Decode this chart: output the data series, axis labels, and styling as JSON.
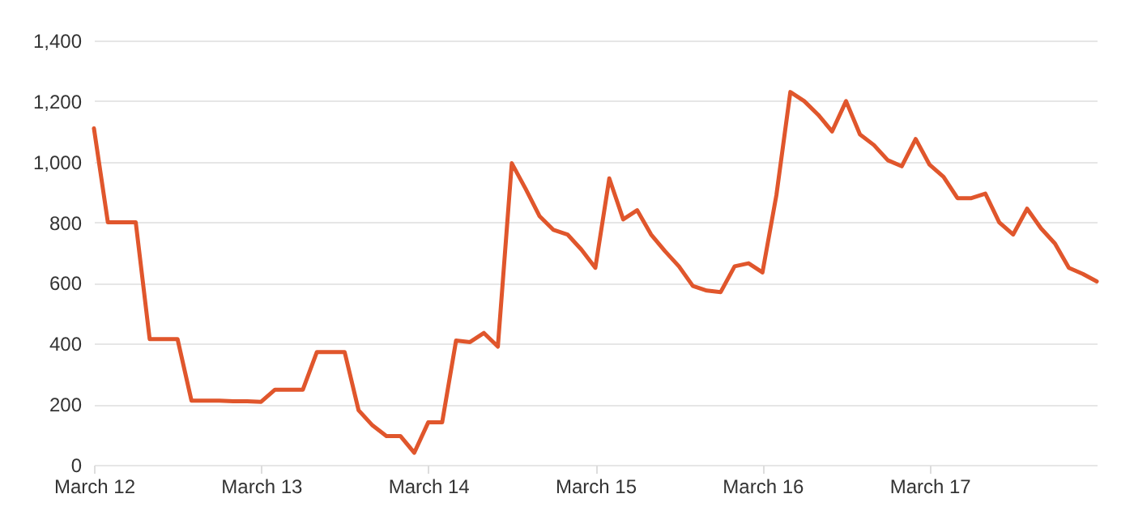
{
  "chart_data": {
    "type": "line",
    "categories": [
      "March 12",
      null,
      null,
      null,
      null,
      null,
      null,
      null,
      null,
      null,
      null,
      null,
      "March 13",
      null,
      null,
      null,
      null,
      null,
      null,
      null,
      null,
      null,
      null,
      null,
      "March 14",
      null,
      null,
      null,
      null,
      null,
      null,
      null,
      null,
      null,
      null,
      null,
      "March 15",
      null,
      null,
      null,
      null,
      null,
      null,
      null,
      null,
      null,
      null,
      null,
      "March 16",
      null,
      null,
      null,
      null,
      null,
      null,
      null,
      null,
      null,
      null,
      null,
      "March 17",
      null,
      null,
      null,
      null,
      null,
      null,
      null,
      null,
      null,
      null,
      null,
      null
    ],
    "series": [
      {
        "color": "#e0562c",
        "values": [
          1110,
          800,
          800,
          800,
          415,
          415,
          415,
          212,
          212,
          212,
          210,
          210,
          208,
          248,
          248,
          248,
          372,
          372,
          372,
          180,
          130,
          95,
          95,
          40,
          140,
          140,
          410,
          405,
          435,
          390,
          995,
          910,
          820,
          775,
          760,
          710,
          650,
          945,
          810,
          840,
          760,
          705,
          655,
          590,
          575,
          570,
          655,
          665,
          635,
          890,
          1230,
          1200,
          1155,
          1100,
          1200,
          1090,
          1055,
          1005,
          985,
          1075,
          990,
          950,
          880,
          880,
          895,
          800,
          760,
          845,
          780,
          730,
          650,
          630,
          605
        ]
      }
    ],
    "ylim": [
      0,
      1400
    ],
    "yticks": [
      0,
      200,
      400,
      600,
      800,
      {
        "value": 1000,
        "label": "1,000"
      },
      {
        "value": 1200,
        "label": "1,200"
      },
      {
        "value": 1400,
        "label": "1,400"
      }
    ],
    "grid": "y",
    "marker": "none",
    "line_style": "solid"
  }
}
